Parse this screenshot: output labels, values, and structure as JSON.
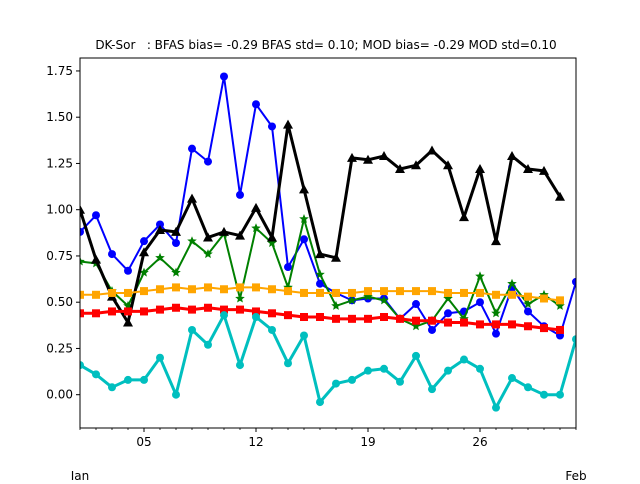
{
  "chart_data": {
    "type": "line",
    "title": "DK-Sor   : BFAS bias= -0.29 BFAS std= 0.10; MOD bias= -0.29 MOD std=0.10",
    "xlabel": "",
    "ylabel": "",
    "x": [
      1,
      2,
      3,
      4,
      5,
      6,
      7,
      8,
      9,
      10,
      11,
      12,
      13,
      14,
      15,
      16,
      17,
      18,
      19,
      20,
      21,
      22,
      23,
      24,
      25,
      26,
      27,
      28,
      29,
      30,
      31,
      32
    ],
    "xlim": [
      1,
      32
    ],
    "ylim": [
      -0.18,
      1.82
    ],
    "yticks": [
      0.0,
      0.25,
      0.5,
      0.75,
      1.0,
      1.25,
      1.5,
      1.75
    ],
    "ytick_labels": [
      "0.00",
      "0.25",
      "0.50",
      "0.75",
      "1.00",
      "1.25",
      "1.50",
      "1.75"
    ],
    "xticks": [
      5,
      12,
      19,
      26
    ],
    "xtick_labels": [
      "05",
      "12",
      "19",
      "26"
    ],
    "month_labels": [
      {
        "x": 1,
        "label": "Jan"
      },
      {
        "x": 32,
        "label": "Feb"
      }
    ],
    "grid": false,
    "series": [
      {
        "color": "#0000ff",
        "marker": "circle",
        "width": 2,
        "values": [
          0.88,
          0.97,
          0.76,
          0.67,
          0.83,
          0.92,
          0.82,
          1.33,
          1.26,
          1.72,
          1.08,
          1.57,
          1.45,
          0.69,
          0.84,
          0.6,
          0.55,
          0.51,
          0.52,
          0.52,
          0.41,
          0.49,
          0.35,
          0.44,
          0.45,
          0.5,
          0.33,
          0.58,
          0.45,
          0.37,
          0.32,
          0.61
        ]
      },
      {
        "color": "#008000",
        "marker": "star",
        "width": 2,
        "values": [
          0.72,
          0.71,
          0.56,
          0.48,
          0.66,
          0.74,
          0.66,
          0.83,
          0.76,
          0.87,
          0.52,
          0.9,
          0.82,
          0.58,
          0.95,
          0.65,
          0.48,
          0.51,
          0.53,
          0.51,
          0.41,
          0.37,
          0.4,
          0.52,
          0.41,
          0.64,
          0.44,
          0.6,
          0.49,
          0.54,
          0.48,
          null
        ]
      },
      {
        "color": "#000000",
        "marker": "triangle",
        "width": 3,
        "values": [
          1.0,
          0.73,
          0.53,
          0.39,
          0.77,
          0.89,
          0.88,
          1.06,
          0.85,
          0.88,
          0.86,
          1.01,
          0.85,
          1.46,
          1.11,
          0.76,
          0.74,
          1.28,
          1.27,
          1.29,
          1.22,
          1.24,
          1.32,
          1.24,
          0.96,
          1.22,
          0.83,
          1.29,
          1.22,
          1.21,
          1.07,
          null
        ]
      },
      {
        "color": "#ffa500",
        "marker": "square",
        "width": 2,
        "values": [
          0.54,
          0.54,
          0.55,
          0.55,
          0.56,
          0.57,
          0.58,
          0.57,
          0.58,
          0.57,
          0.58,
          0.58,
          0.57,
          0.56,
          0.55,
          0.55,
          0.55,
          0.55,
          0.56,
          0.56,
          0.56,
          0.56,
          0.56,
          0.55,
          0.55,
          0.55,
          0.54,
          0.54,
          0.53,
          0.52,
          0.51,
          null
        ]
      },
      {
        "color": "#ff0000",
        "marker": "square",
        "width": 3,
        "values": [
          0.44,
          0.44,
          0.45,
          0.45,
          0.45,
          0.46,
          0.47,
          0.46,
          0.47,
          0.46,
          0.46,
          0.45,
          0.44,
          0.43,
          0.42,
          0.42,
          0.41,
          0.41,
          0.41,
          0.42,
          0.41,
          0.4,
          0.4,
          0.39,
          0.39,
          0.38,
          0.38,
          0.38,
          0.37,
          0.36,
          0.35,
          null
        ]
      },
      {
        "color": "#00bfbf",
        "marker": "circle",
        "width": 3,
        "values": [
          0.16,
          0.11,
          0.04,
          0.08,
          0.08,
          0.2,
          0.0,
          0.35,
          0.27,
          0.43,
          0.16,
          0.42,
          0.35,
          0.17,
          0.32,
          -0.04,
          0.06,
          0.08,
          0.13,
          0.14,
          0.07,
          0.21,
          0.03,
          0.13,
          0.19,
          0.14,
          -0.07,
          0.09,
          0.04,
          0.0,
          0.0,
          0.3
        ]
      }
    ]
  }
}
